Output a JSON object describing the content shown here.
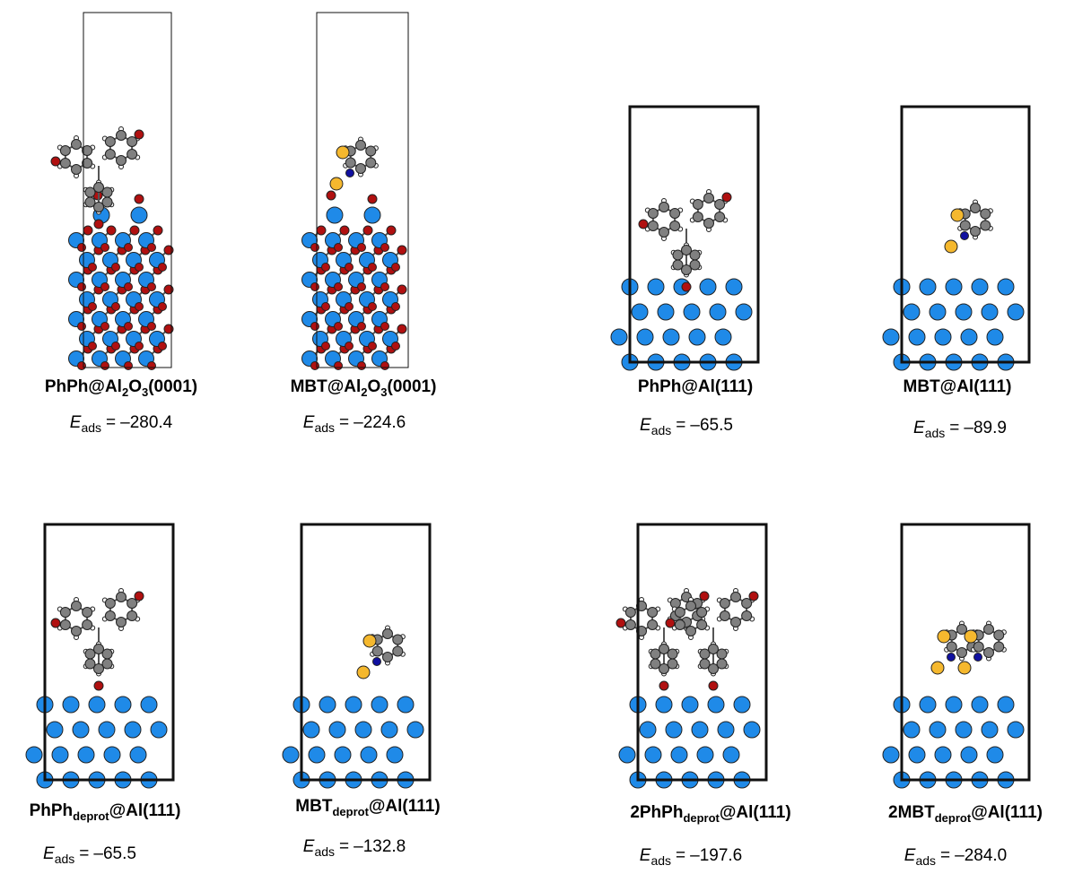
{
  "energy_label": {
    "symbol": "E",
    "subscript": "ads",
    "equals": "="
  },
  "panels": [
    {
      "label": [
        {
          "text": "PhPh@Al"
        },
        {
          "text": "2",
          "sub": true
        },
        {
          "text": "O"
        },
        {
          "text": "3",
          "sub": true
        },
        {
          "text": "(0001)"
        }
      ],
      "energy": "–280.4"
    },
    {
      "label": [
        {
          "text": "MBT@Al"
        },
        {
          "text": "2",
          "sub": true
        },
        {
          "text": "O"
        },
        {
          "text": "3",
          "sub": true
        },
        {
          "text": "(0001)"
        }
      ],
      "energy": "–224.6"
    },
    {
      "label": [
        {
          "text": "PhPh@Al(111)"
        }
      ],
      "energy": "–65.5"
    },
    {
      "label": [
        {
          "text": "MBT@Al(111)"
        }
      ],
      "energy": "–89.9"
    },
    {
      "label": [
        {
          "text": "PhPh"
        },
        {
          "text": "deprot",
          "sub": true
        },
        {
          "text": "@Al(111)"
        }
      ],
      "energy": "–65.5"
    },
    {
      "label": [
        {
          "text": "MBT"
        },
        {
          "text": "deprot",
          "sub": true
        },
        {
          "text": "@Al(111)"
        }
      ],
      "energy": "–132.8"
    },
    {
      "label": [
        {
          "text": "2PhPh"
        },
        {
          "text": "deprot",
          "sub": true
        },
        {
          "text": "@Al(111)"
        }
      ],
      "energy": "–197.6"
    },
    {
      "label": [
        {
          "text": "2MBT"
        },
        {
          "text": "deprot",
          "sub": true
        },
        {
          "text": "@Al(111)"
        }
      ],
      "energy": "–284.0"
    }
  ]
}
